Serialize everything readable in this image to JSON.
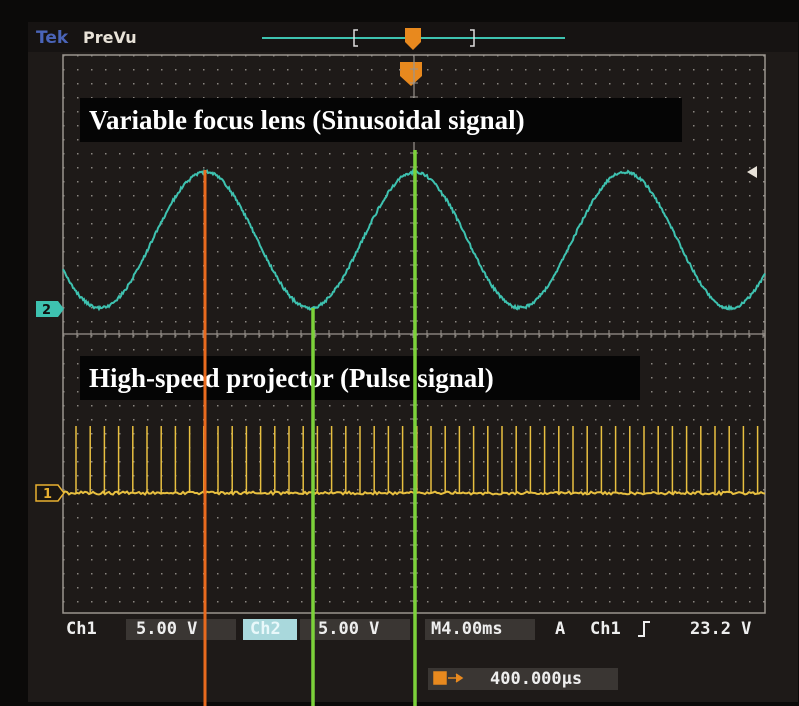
{
  "header": {
    "brand": "Tek",
    "mode": "PreVu"
  },
  "annotations": {
    "sinusoid": "Variable focus lens (Sinusoidal signal)",
    "pulse": "High-speed projector (Pulse signal)"
  },
  "channel_markers": {
    "ch2": "2",
    "ch1": "1"
  },
  "status": {
    "ch1_label": "Ch1",
    "ch1_scale": "5.00 V",
    "ch2_label": "Ch2",
    "ch2_scale": "5.00 V",
    "timebase": "M4.00ms",
    "trigger_mode": "A",
    "trigger_source": "Ch1",
    "trigger_level": "23.2 V",
    "trigger_position": "400.000µs"
  }
}
